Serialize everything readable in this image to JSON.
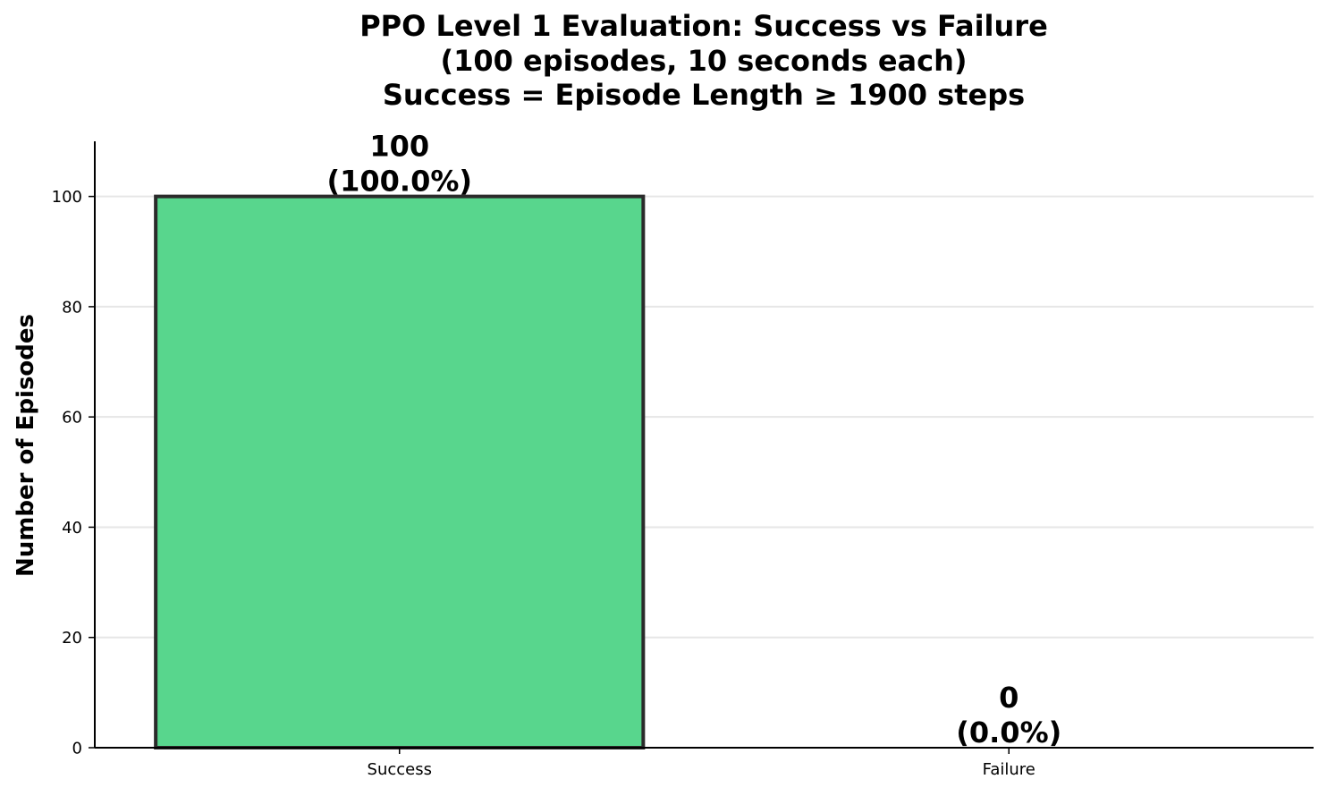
{
  "chart_data": {
    "type": "bar",
    "title": [
      "PPO Level 1 Evaluation: Success vs Failure",
      "(100 episodes, 10 seconds each)",
      "Success = Episode Length ≥ 1900 steps"
    ],
    "xlabel": "",
    "ylabel": "Number of Episodes",
    "categories": [
      "Success",
      "Failure"
    ],
    "values": [
      100,
      0
    ],
    "data_labels": [
      [
        "100",
        "(100.0%)"
      ],
      [
        "0",
        "(0.0%)"
      ]
    ],
    "bar_colors": [
      "#58d68d",
      "#e74c3c"
    ],
    "bar_edge_color": "#2b2b2b",
    "ylim": [
      0,
      110
    ],
    "yticks": [
      0,
      20,
      40,
      60,
      80,
      100
    ],
    "grid": "horizontal"
  }
}
